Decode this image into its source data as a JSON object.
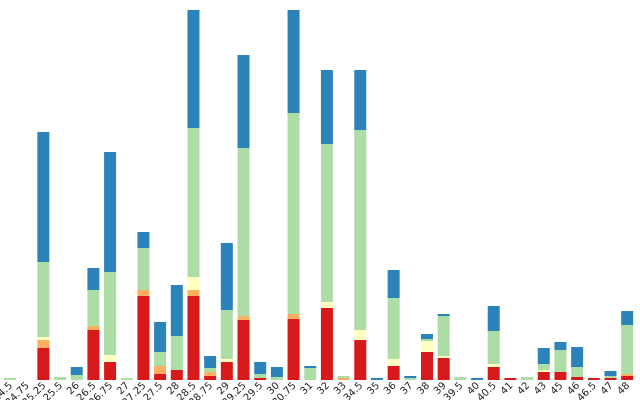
{
  "chart_data": {
    "type": "stacked_bar",
    "categories": [
      "24.5",
      "24.75",
      "25.25",
      "25.5",
      "26",
      "26.5",
      "26.75",
      "27",
      "27.25",
      "27.5",
      "28",
      "28.5",
      "28.75",
      "29",
      "29.25",
      "29.5",
      "30",
      "30.75",
      "31",
      "32",
      "33",
      "34.5",
      "35",
      "36",
      "37",
      "38",
      "39",
      "39.5",
      "40",
      "40.5",
      "41",
      "42",
      "43",
      "45",
      "46",
      "46.5",
      "47",
      "48"
    ],
    "series": [
      {
        "color": "#d7191c",
        "values": [
          0,
          0,
          3.2,
          0,
          0,
          5,
          1.8,
          0,
          8.4,
          0.6,
          1,
          8.4,
          0.4,
          1.8,
          6,
          0.2,
          0,
          6.1,
          0,
          7.2,
          0,
          4,
          0,
          1.4,
          0,
          2.8,
          2.2,
          0,
          0,
          1.3,
          0.2,
          0,
          0.8,
          0.8,
          0.3,
          0.2,
          0.2,
          0.4
        ]
      },
      {
        "color": "#fdae61",
        "values": [
          0,
          0,
          0.8,
          0,
          0,
          0.4,
          0,
          0,
          0.6,
          0.8,
          0,
          0.6,
          0.4,
          0,
          0.4,
          0,
          0,
          0.5,
          0,
          0,
          0.2,
          0,
          0,
          0,
          0,
          0,
          0,
          0,
          0,
          0,
          0,
          0,
          0,
          0,
          0,
          0,
          0,
          0.2
        ]
      },
      {
        "color": "#ffffbf",
        "values": [
          0,
          0,
          0.3,
          0,
          0,
          0,
          0.7,
          0,
          0,
          0,
          0,
          1.3,
          0,
          0.3,
          0,
          0,
          0,
          0,
          0,
          0.6,
          0,
          1,
          0,
          0.7,
          0,
          1.1,
          0.2,
          0,
          0,
          0.3,
          0,
          0,
          0.2,
          0,
          0,
          0,
          0,
          0
        ]
      },
      {
        "color": "#abdda4",
        "values": [
          0.2,
          0,
          7.5,
          0.3,
          0.5,
          3.6,
          8.3,
          0.2,
          4.2,
          1.4,
          3.4,
          14.9,
          0.4,
          4.9,
          16.8,
          0.4,
          0.3,
          20.1,
          1.2,
          15.8,
          0.2,
          20,
          0,
          6.1,
          0.2,
          0.2,
          4,
          0.3,
          0,
          3.3,
          0,
          0.3,
          0.6,
          2.2,
          1,
          0,
          0.2,
          4.9
        ]
      },
      {
        "color": "#2b83ba",
        "values": [
          0,
          0,
          13,
          0,
          0.8,
          2.2,
          12,
          0,
          1.6,
          3,
          5.1,
          11.8,
          1.2,
          6.7,
          9.3,
          1.2,
          1,
          10.3,
          0.2,
          7.4,
          0,
          6,
          0.2,
          2.8,
          0.2,
          0.5,
          0.2,
          0,
          0.2,
          2.5,
          0,
          0,
          1.6,
          0.8,
          2,
          0,
          0.5,
          1.4
        ]
      }
    ],
    "ylim": [
      0,
      37
    ]
  }
}
